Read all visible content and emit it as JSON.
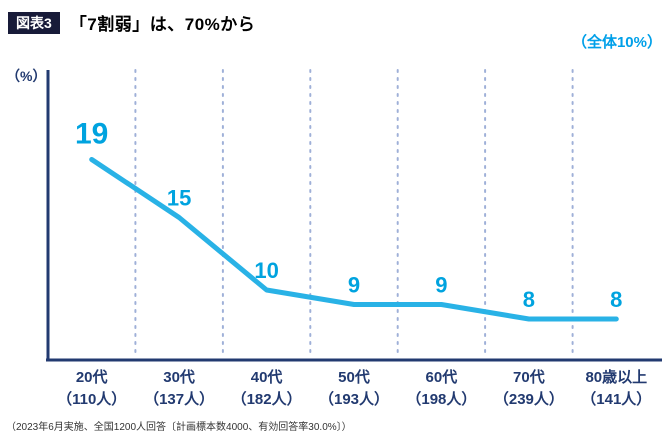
{
  "header": {
    "badge": "図表3",
    "title": "「7割弱」は、70%から",
    "overall_label": "（全体10%）"
  },
  "chart_data": {
    "type": "line",
    "title": "「7割弱」は、70%から",
    "annotation": "（全体10%）",
    "ylabel": "（%）",
    "xlabel": "",
    "categories": [
      "20代",
      "30代",
      "40代",
      "50代",
      "60代",
      "70代",
      "80歳以上"
    ],
    "category_sizes": [
      "（110人）",
      "（137人）",
      "（182人）",
      "（193人）",
      "（198人）",
      "（239人）",
      "（141人）"
    ],
    "values": [
      19,
      15,
      10,
      9,
      9,
      8,
      8
    ],
    "ylim": [
      5,
      25
    ],
    "grid": "vertical-dotted",
    "legend": "none",
    "line_color": "#29b2e6",
    "label_color": "#00a3df",
    "axis_color": "#223a70",
    "grid_color": "#9fb0d8",
    "badge_color": "#181b39"
  },
  "footer": {
    "note": "（2023年6月実施、全国1200人回答〔計画標本数4000、有効回答率30.0%〕）"
  }
}
